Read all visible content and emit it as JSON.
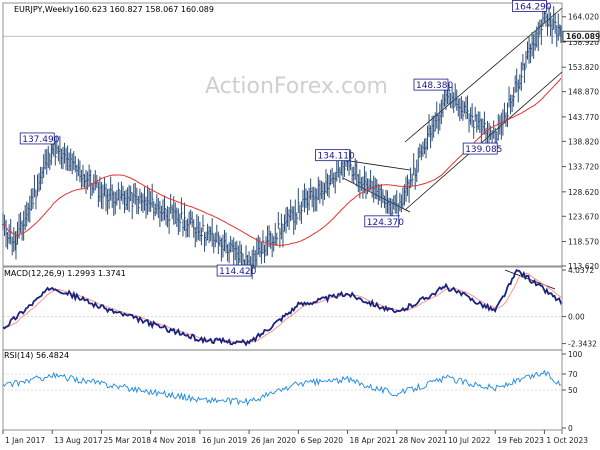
{
  "chart_data": [
    {
      "type": "candlestick",
      "title": "EURJPY,Weekly",
      "ohlc_readout": "160.623 160.827 158.067 160.089",
      "watermark": "ActionForex.com",
      "ylim": [
        113.62,
        166.8
      ],
      "y_ticks": [
        "164.020",
        "158.920",
        "153.820",
        "148.870",
        "143.770",
        "138.820",
        "133.720",
        "128.620",
        "123.670",
        "118.570",
        "113.620"
      ],
      "last_price": "160.089",
      "annotations": [
        "164.290",
        "148.380",
        "139.085",
        "137.490",
        "134.110",
        "124.370",
        "114.420"
      ],
      "ma_color": "#e3342f",
      "price_color": "#2b4d7a",
      "key_points": [
        {
          "date": "2017-01-01",
          "value": 121.5
        },
        {
          "date": "2017-03-01",
          "value": 118.5
        },
        {
          "date": "2017-08-13",
          "value": 137.49
        },
        {
          "date": "2018-03-25",
          "value": 128.5
        },
        {
          "date": "2018-11-04",
          "value": 126.0
        },
        {
          "date": "2019-06-16",
          "value": 121.0
        },
        {
          "date": "2020-01-26",
          "value": 114.42
        },
        {
          "date": "2020-09-06",
          "value": 125.0
        },
        {
          "date": "2021-04-18",
          "value": 134.11
        },
        {
          "date": "2021-11-28",
          "value": 124.37
        },
        {
          "date": "2022-07-10",
          "value": 148.38
        },
        {
          "date": "2023-02-19",
          "value": 139.085
        },
        {
          "date": "2023-10-01",
          "value": 164.29
        },
        {
          "date": "2023-12-15",
          "value": 160.089
        }
      ]
    },
    {
      "type": "line",
      "title": "MACD(12,26,9) 1.2993 1.3741",
      "ylim": [
        -2.9,
        4.3
      ],
      "y_ticks": [
        "4.0372",
        "0.00",
        "-2.3432"
      ],
      "series_colors": [
        "#1a237e",
        "#ff8a80"
      ],
      "key_points": [
        {
          "date": "2017-01-01",
          "value": -1.0
        },
        {
          "date": "2017-08-13",
          "value": 2.6
        },
        {
          "date": "2018-03-25",
          "value": 0.8
        },
        {
          "date": "2019-06-16",
          "value": -2.0
        },
        {
          "date": "2020-01-26",
          "value": -2.3
        },
        {
          "date": "2020-09-06",
          "value": 1.0
        },
        {
          "date": "2021-04-18",
          "value": 2.0
        },
        {
          "date": "2021-11-28",
          "value": 0.3
        },
        {
          "date": "2022-07-10",
          "value": 2.6
        },
        {
          "date": "2023-02-19",
          "value": 0.5
        },
        {
          "date": "2023-06-01",
          "value": 4.0
        },
        {
          "date": "2023-12-15",
          "value": 1.3
        }
      ]
    },
    {
      "type": "line",
      "title": "RSI(14) 56.4824",
      "ylim": [
        0,
        100
      ],
      "y_ticks": [
        "100",
        "70",
        "50",
        "0"
      ],
      "series_colors": [
        "#1e88e5"
      ],
      "key_points": [
        {
          "date": "2017-01-01",
          "value": 55
        },
        {
          "date": "2017-08-13",
          "value": 68
        },
        {
          "date": "2018-03-25",
          "value": 58
        },
        {
          "date": "2019-06-16",
          "value": 38
        },
        {
          "date": "2020-01-26",
          "value": 35
        },
        {
          "date": "2020-09-06",
          "value": 58
        },
        {
          "date": "2021-04-18",
          "value": 63
        },
        {
          "date": "2021-11-28",
          "value": 45
        },
        {
          "date": "2022-07-10",
          "value": 65
        },
        {
          "date": "2023-02-19",
          "value": 52
        },
        {
          "date": "2023-10-01",
          "value": 72
        },
        {
          "date": "2023-12-15",
          "value": 56.48
        }
      ]
    }
  ],
  "x_ticks": [
    "1 Jan 2017",
    "13 Aug 2017",
    "25 Mar 2018",
    "4 Nov 2018",
    "16 Jun 2019",
    "26 Jan 2020",
    "6 Sep 2020",
    "18 Apr 2021",
    "28 Nov 2021",
    "10 Jul 2022",
    "19 Feb 2023",
    "1 Oct 2023"
  ]
}
